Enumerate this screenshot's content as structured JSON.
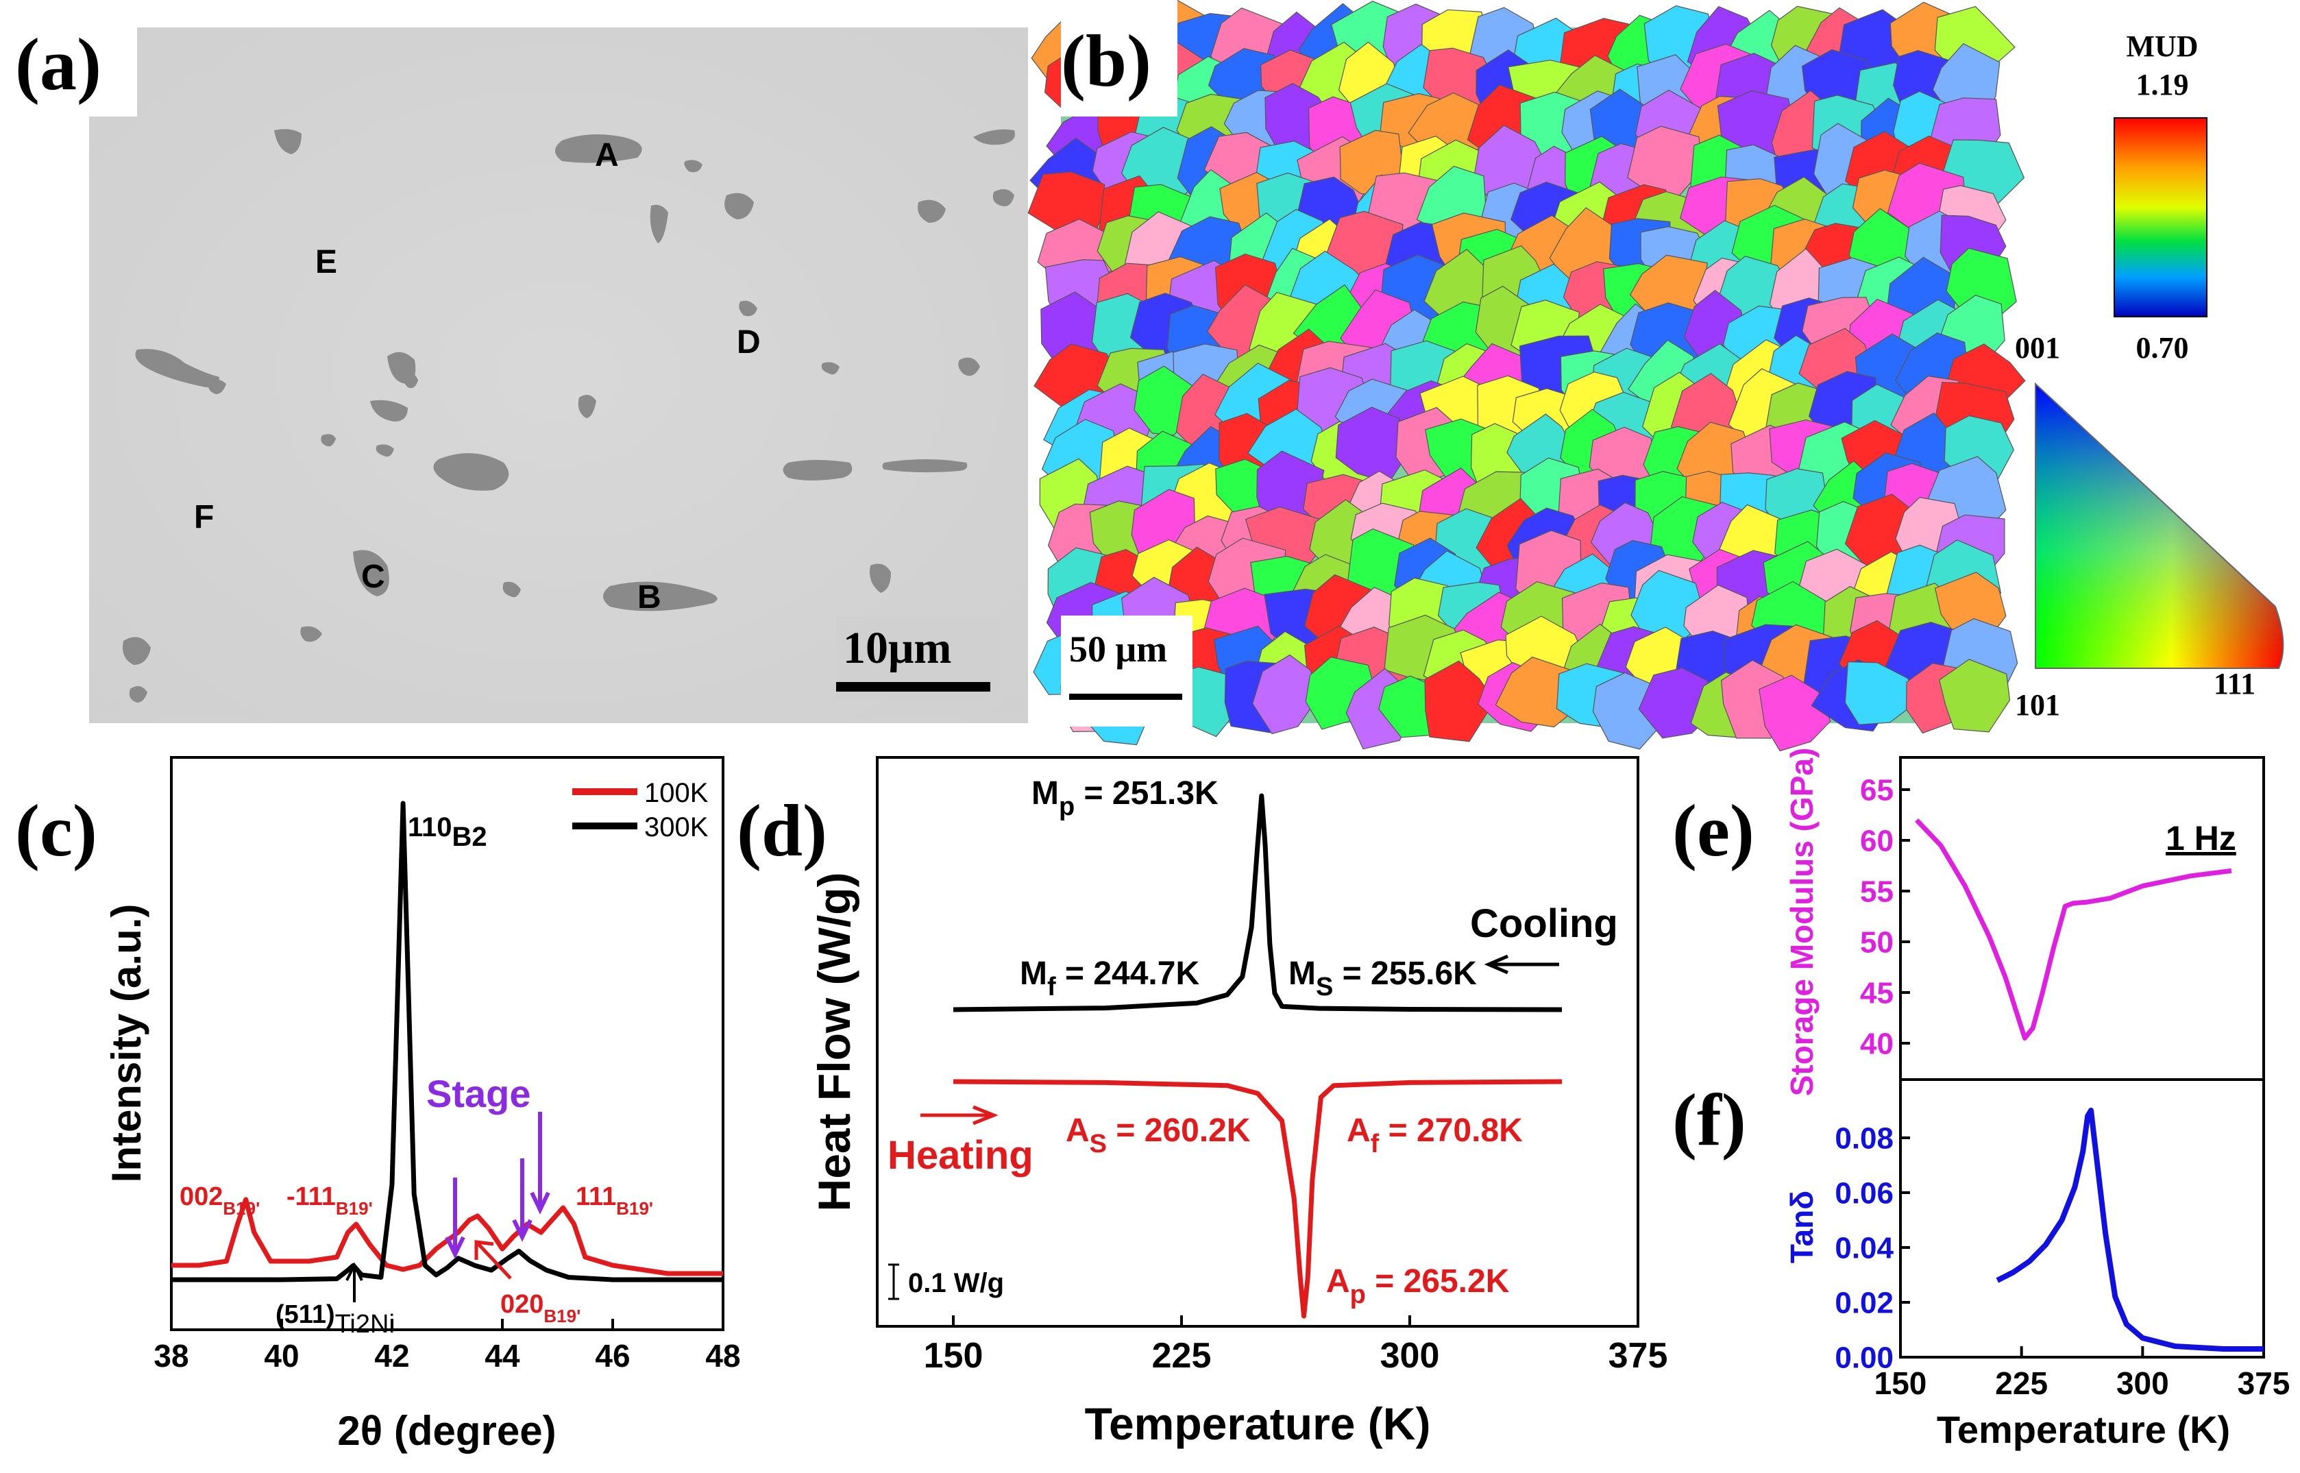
{
  "figure": {
    "panel_labels": {
      "a": "(a)",
      "b": "(b)",
      "c": "(c)",
      "d": "(d)",
      "e": "(e)",
      "f": "(f)"
    }
  },
  "panel_a": {
    "region_labels": [
      "A",
      "B",
      "C",
      "D",
      "E",
      "F"
    ],
    "scalebar": "10μm"
  },
  "panel_b": {
    "scalebar": "50 μm",
    "mud_title": "MUD",
    "mud_max": "1.19",
    "mud_min": "0.70",
    "ipf_001": "001",
    "ipf_101": "101",
    "ipf_111": "111"
  },
  "colors": {
    "red": "#e31a1c",
    "black": "#000000",
    "purple": "#8a2be2",
    "magenta": "#e020e0",
    "blue": "#1010e0"
  },
  "chart_data": [
    {
      "id": "c",
      "type": "line",
      "xlabel": "2θ (degree)",
      "ylabel": "Intensity (a.u.)",
      "xlim": [
        38,
        48
      ],
      "xticks": [
        "38",
        "40",
        "42",
        "44",
        "46",
        "48"
      ],
      "legend": [
        "100K",
        "300K"
      ],
      "series": [
        {
          "name": "100K",
          "color": "#e31a1c",
          "x": [
            38,
            38.5,
            39,
            39.2,
            39.35,
            39.5,
            39.8,
            40.5,
            41,
            41.2,
            41.35,
            41.6,
            41.9,
            42.2,
            42.5,
            42.8,
            43.0,
            43.2,
            43.4,
            43.55,
            43.75,
            44.0,
            44.2,
            44.45,
            44.7,
            44.9,
            45.1,
            45.3,
            45.5,
            46,
            46.5,
            47,
            47.5,
            48
          ],
          "y": [
            2,
            2,
            2.5,
            7,
            10,
            6,
            2.5,
            2.5,
            3,
            6,
            7,
            4.5,
            2,
            1.5,
            2,
            4,
            5,
            6,
            7.5,
            8,
            6.5,
            4,
            5.5,
            7,
            6,
            7.5,
            9,
            7,
            3,
            2,
            1.5,
            1,
            1,
            1
          ]
        },
        {
          "name": "300K",
          "color": "#000000",
          "x": [
            38,
            40,
            41,
            41.2,
            41.3,
            41.45,
            41.8,
            42.0,
            42.1,
            42.2,
            42.3,
            42.4,
            42.6,
            42.8,
            43.0,
            43.2,
            43.5,
            43.8,
            44.1,
            44.3,
            44.5,
            44.8,
            45.2,
            46,
            48
          ],
          "y": [
            0,
            0,
            0.2,
            2,
            3,
            1,
            0.5,
            20,
            60,
            100,
            60,
            18,
            3,
            1,
            2.5,
            4.5,
            3,
            2,
            4.5,
            6,
            4,
            2,
            0.5,
            0,
            0
          ]
        }
      ],
      "annotations": {
        "peak_110": "110",
        "peak_110_sub": "B2",
        "p002": "002",
        "p002_sub": "B19'",
        "p111m": "-111",
        "p111m_sub": "B19'",
        "p111": "111",
        "p111_sub": "B19'",
        "p020": "020",
        "p020_sub": "B19'",
        "p511": "(511)",
        "p511_sub": "Ti2Ni",
        "stage": "Stage"
      }
    },
    {
      "id": "d",
      "type": "line",
      "xlabel": "Temperature (K)",
      "ylabel": "Heat Flow (W/g)",
      "xlim": [
        125,
        375
      ],
      "xticks": [
        "150",
        "225",
        "300",
        "375"
      ],
      "scale_label": "0.1 W/g",
      "series": [
        {
          "name": "Cooling",
          "color": "#000000",
          "x": [
            150,
            200,
            230,
            240,
            245,
            248,
            250,
            251.3,
            252.5,
            254,
            255.6,
            258,
            270,
            300,
            350
          ],
          "y": [
            0,
            0.1,
            0.4,
            0.9,
            2.0,
            5,
            10,
            13,
            10,
            4,
            1,
            0.2,
            0.08,
            0.02,
            0
          ]
        },
        {
          "name": "Heating",
          "color": "#e31a1c",
          "x": [
            150,
            200,
            240,
            250,
            258,
            262,
            264,
            265.2,
            266.5,
            268,
            270.8,
            275,
            300,
            350
          ],
          "y": [
            0,
            -0.05,
            -0.2,
            -0.6,
            -2,
            -6,
            -10,
            -12,
            -10,
            -5,
            -0.8,
            -0.2,
            -0.05,
            0
          ]
        }
      ],
      "annotations": {
        "mp": "M",
        "mp_sub": "p",
        "mp_val": " = 251.3K",
        "mf": "M",
        "mf_sub": "f",
        "mf_val": " = 244.7K",
        "ms": "M",
        "ms_sub": "S",
        "ms_val": " = 255.6K",
        "as": "A",
        "as_sub": "S",
        "as_val": " = 260.2K",
        "af": "A",
        "af_sub": "f",
        "af_val": " = 270.8K",
        "ap": "A",
        "ap_sub": "p",
        "ap_val": " = 265.2K",
        "cooling": "Cooling",
        "heating": "Heating"
      }
    },
    {
      "id": "e",
      "type": "line",
      "ylabel": "Storage Modulus (GPa)",
      "ylim": [
        37,
        65
      ],
      "yticks": [
        "40",
        "45",
        "50",
        "55",
        "60",
        "65"
      ],
      "freq_label": "1 Hz",
      "series": [
        {
          "name": "Storage Modulus",
          "color": "#e020e0",
          "x": [
            160,
            175,
            190,
            205,
            215,
            222,
            227,
            232,
            238,
            245,
            252,
            257,
            265,
            280,
            300,
            330,
            355
          ],
          "y": [
            62,
            59.5,
            55.5,
            50.5,
            46.5,
            43,
            40.5,
            41.5,
            45,
            49.5,
            53.5,
            53.8,
            53.9,
            54.3,
            55.5,
            56.5,
            57
          ]
        }
      ]
    },
    {
      "id": "f",
      "type": "line",
      "xlabel": "Temperature (K)",
      "ylabel": "Tanδ",
      "xlim": [
        150,
        375
      ],
      "ylim": [
        0,
        0.095
      ],
      "xticks": [
        "150",
        "225",
        "300",
        "375"
      ],
      "yticks": [
        "0.00",
        "0.02",
        "0.04",
        "0.06",
        "0.08"
      ],
      "series": [
        {
          "name": "Tanδ",
          "color": "#1010e0",
          "x": [
            210,
            220,
            230,
            240,
            250,
            258,
            263,
            266,
            268,
            272,
            277,
            283,
            290,
            300,
            320,
            350,
            375
          ],
          "y": [
            0.028,
            0.031,
            0.035,
            0.041,
            0.05,
            0.062,
            0.075,
            0.088,
            0.09,
            0.07,
            0.045,
            0.022,
            0.012,
            0.007,
            0.004,
            0.003,
            0.003
          ]
        }
      ]
    }
  ]
}
